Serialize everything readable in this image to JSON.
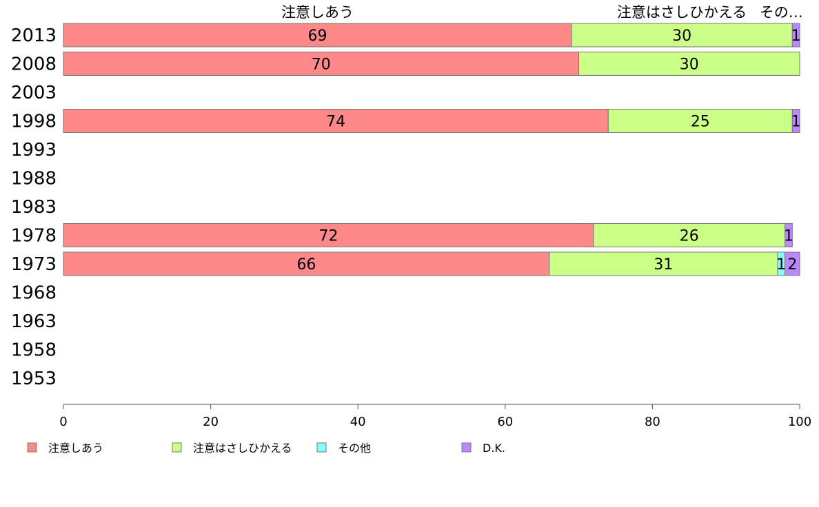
{
  "chart_data": {
    "type": "bar",
    "orientation": "horizontal",
    "stacked": true,
    "categories": [
      "2013",
      "2008",
      "2003",
      "1998",
      "1993",
      "1988",
      "1983",
      "1978",
      "1973",
      "1968",
      "1963",
      "1958",
      "1953"
    ],
    "series": [
      {
        "name": "注意しあう",
        "color": "#ff8888",
        "values": [
          69,
          70,
          null,
          74,
          null,
          null,
          null,
          72,
          66,
          null,
          null,
          null,
          null
        ]
      },
      {
        "name": "注意はさしひかえる",
        "color": "#ccff88",
        "values": [
          30,
          30,
          null,
          25,
          null,
          null,
          null,
          26,
          31,
          null,
          null,
          null,
          null
        ]
      },
      {
        "name": "その他",
        "color": "#88ffff",
        "values": [
          0,
          0,
          null,
          0,
          null,
          null,
          null,
          0,
          1,
          null,
          null,
          null,
          null
        ]
      },
      {
        "name": "D.K.",
        "color": "#bb88ff",
        "values": [
          1,
          0,
          null,
          1,
          null,
          null,
          null,
          1,
          2,
          null,
          null,
          null,
          null
        ]
      }
    ],
    "top_labels": [
      "注意しあう",
      "注意はさしひかえる",
      "その…"
    ],
    "xlim": [
      0,
      100
    ],
    "xticks": [
      0,
      20,
      40,
      60,
      80,
      100
    ],
    "grid": false,
    "legend_position": "bottom"
  }
}
